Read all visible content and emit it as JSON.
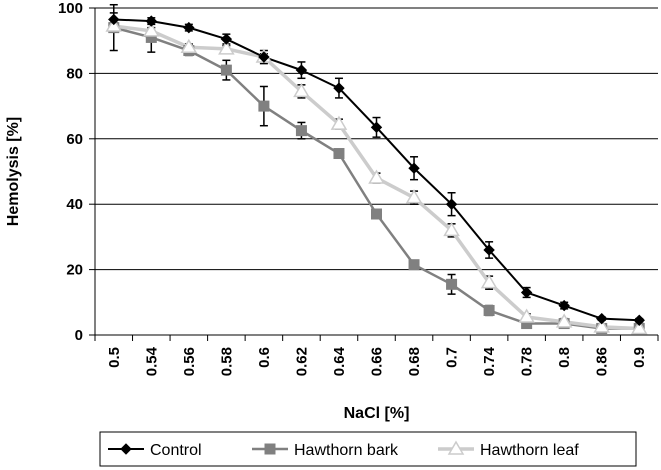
{
  "chart_data": {
    "type": "line",
    "xlabel": "NaCl [%]",
    "ylabel": "Hemolysis  [%]",
    "ylim": [
      0,
      100
    ],
    "yticks": [
      0,
      20,
      40,
      60,
      80,
      100
    ],
    "grid": "horizontal",
    "legend_position": "bottom",
    "categories": [
      "0.5",
      "0.54",
      "0.56",
      "0.58",
      "0.6",
      "0.62",
      "0.64",
      "0.66",
      "0.68",
      "0.7",
      "0.74",
      "0.78",
      "0.8",
      "0.86",
      "0.9"
    ],
    "series": [
      {
        "name": "Control",
        "color": "#000000",
        "marker": "diamond",
        "values": [
          96.5,
          96,
          94,
          90.5,
          85,
          81,
          75.5,
          63.5,
          51,
          40,
          26,
          13,
          9,
          5,
          4.5
        ],
        "errors": [
          2,
          1,
          1,
          1.5,
          2,
          2.5,
          3,
          3,
          3.5,
          3.5,
          2.5,
          1.5,
          1,
          0.5,
          0.5
        ]
      },
      {
        "name": "Hawthorn bark",
        "color": "#808080",
        "marker": "square",
        "values": [
          94,
          91,
          87,
          81,
          70,
          62.5,
          55.5,
          37,
          21.5,
          15.5,
          7.5,
          3.5,
          3.5,
          2,
          2
        ],
        "errors": [
          7,
          4.5,
          1.5,
          3,
          6,
          2.5,
          1,
          1,
          1,
          3,
          1.5,
          1,
          1,
          0.5,
          0.5
        ]
      },
      {
        "name": "Hawthorn leaf",
        "color": "#cccccc",
        "marker": "triangle",
        "values": [
          94.5,
          93,
          88,
          87.5,
          85,
          74.5,
          64.5,
          48,
          42,
          32,
          16,
          5.5,
          4,
          2.5,
          2
        ],
        "errors": [
          1,
          1,
          1,
          1,
          1,
          2,
          1.5,
          1.5,
          2,
          2,
          2,
          1,
          1,
          0.5,
          0.5
        ]
      }
    ]
  }
}
